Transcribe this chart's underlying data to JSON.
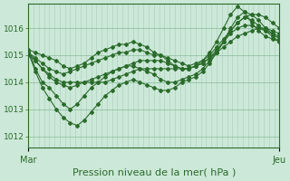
{
  "bg_color": "#cce8d8",
  "grid_color_v": "#aaccbb",
  "grid_color_h": "#88bb99",
  "line_color": "#2a6b2a",
  "title": "Pression niveau de la mer( hPa )",
  "title_fontsize": 8,
  "xlabel_left": "Mar",
  "xlabel_right": "Jeu",
  "ylim": [
    1011.6,
    1016.9
  ],
  "yticks": [
    1012,
    1013,
    1014,
    1015,
    1016
  ],
  "series": [
    [
      1015.1,
      1014.8,
      1014.5,
      1014.2,
      1014.0,
      1013.9,
      1013.8,
      1013.9,
      1014.0,
      1014.1,
      1014.2,
      1014.3,
      1014.4,
      1014.5,
      1014.6,
      1014.7,
      1014.8,
      1014.8,
      1014.8,
      1014.8,
      1014.7,
      1014.6,
      1014.5,
      1014.5,
      1014.6,
      1014.7,
      1014.9,
      1015.1,
      1015.3,
      1015.5,
      1015.7,
      1015.8,
      1015.9,
      1016.0,
      1016.0,
      1015.9,
      1015.8
    ],
    [
      1015.1,
      1014.9,
      1014.7,
      1014.5,
      1014.4,
      1014.3,
      1014.4,
      1014.5,
      1014.6,
      1014.7,
      1014.8,
      1014.9,
      1015.0,
      1015.1,
      1015.1,
      1015.2,
      1015.2,
      1015.1,
      1015.0,
      1015.0,
      1014.9,
      1014.8,
      1014.7,
      1014.6,
      1014.7,
      1014.8,
      1015.0,
      1015.3,
      1015.6,
      1015.9,
      1016.2,
      1016.4,
      1016.5,
      1016.5,
      1016.4,
      1016.2,
      1016.0
    ],
    [
      1015.0,
      1014.8,
      1014.5,
      1014.3,
      1014.1,
      1014.0,
      1014.0,
      1014.0,
      1014.0,
      1014.0,
      1014.0,
      1014.0,
      1014.1,
      1014.2,
      1014.3,
      1014.4,
      1014.5,
      1014.5,
      1014.5,
      1014.5,
      1014.5,
      1014.5,
      1014.5,
      1014.5,
      1014.6,
      1014.7,
      1014.9,
      1015.2,
      1015.5,
      1015.8,
      1016.0,
      1016.1,
      1016.1,
      1016.0,
      1015.9,
      1015.8,
      1015.7
    ],
    [
      1015.2,
      1015.1,
      1015.0,
      1014.9,
      1014.8,
      1014.6,
      1014.5,
      1014.6,
      1014.7,
      1014.9,
      1015.1,
      1015.2,
      1015.3,
      1015.4,
      1015.4,
      1015.5,
      1015.4,
      1015.3,
      1015.1,
      1015.0,
      1014.8,
      1014.6,
      1014.5,
      1014.5,
      1014.6,
      1014.8,
      1015.1,
      1015.5,
      1016.0,
      1016.5,
      1016.8,
      1016.6,
      1016.2,
      1015.9,
      1015.7,
      1015.6,
      1015.5
    ],
    [
      1015.2,
      1014.5,
      1014.0,
      1013.8,
      1013.5,
      1013.2,
      1013.0,
      1013.2,
      1013.5,
      1013.8,
      1014.0,
      1014.2,
      1014.4,
      1014.5,
      1014.6,
      1014.6,
      1014.5,
      1014.4,
      1014.3,
      1014.1,
      1014.0,
      1014.0,
      1014.1,
      1014.2,
      1014.3,
      1014.5,
      1014.8,
      1015.1,
      1015.5,
      1015.9,
      1016.2,
      1016.4,
      1016.3,
      1016.1,
      1015.9,
      1015.7,
      1015.5
    ],
    [
      1015.1,
      1014.4,
      1013.8,
      1013.4,
      1013.0,
      1012.7,
      1012.5,
      1012.4,
      1012.6,
      1012.9,
      1013.2,
      1013.5,
      1013.7,
      1013.9,
      1014.0,
      1014.1,
      1014.0,
      1013.9,
      1013.8,
      1013.7,
      1013.7,
      1013.8,
      1014.0,
      1014.1,
      1014.2,
      1014.4,
      1014.7,
      1015.1,
      1015.5,
      1016.0,
      1016.4,
      1016.6,
      1016.5,
      1016.3,
      1016.0,
      1015.8,
      1015.6
    ]
  ],
  "n_points": 37,
  "marker": "D",
  "markersize": 2.0,
  "linewidth": 0.8,
  "n_vgrid": 48,
  "n_hgrid": 5
}
